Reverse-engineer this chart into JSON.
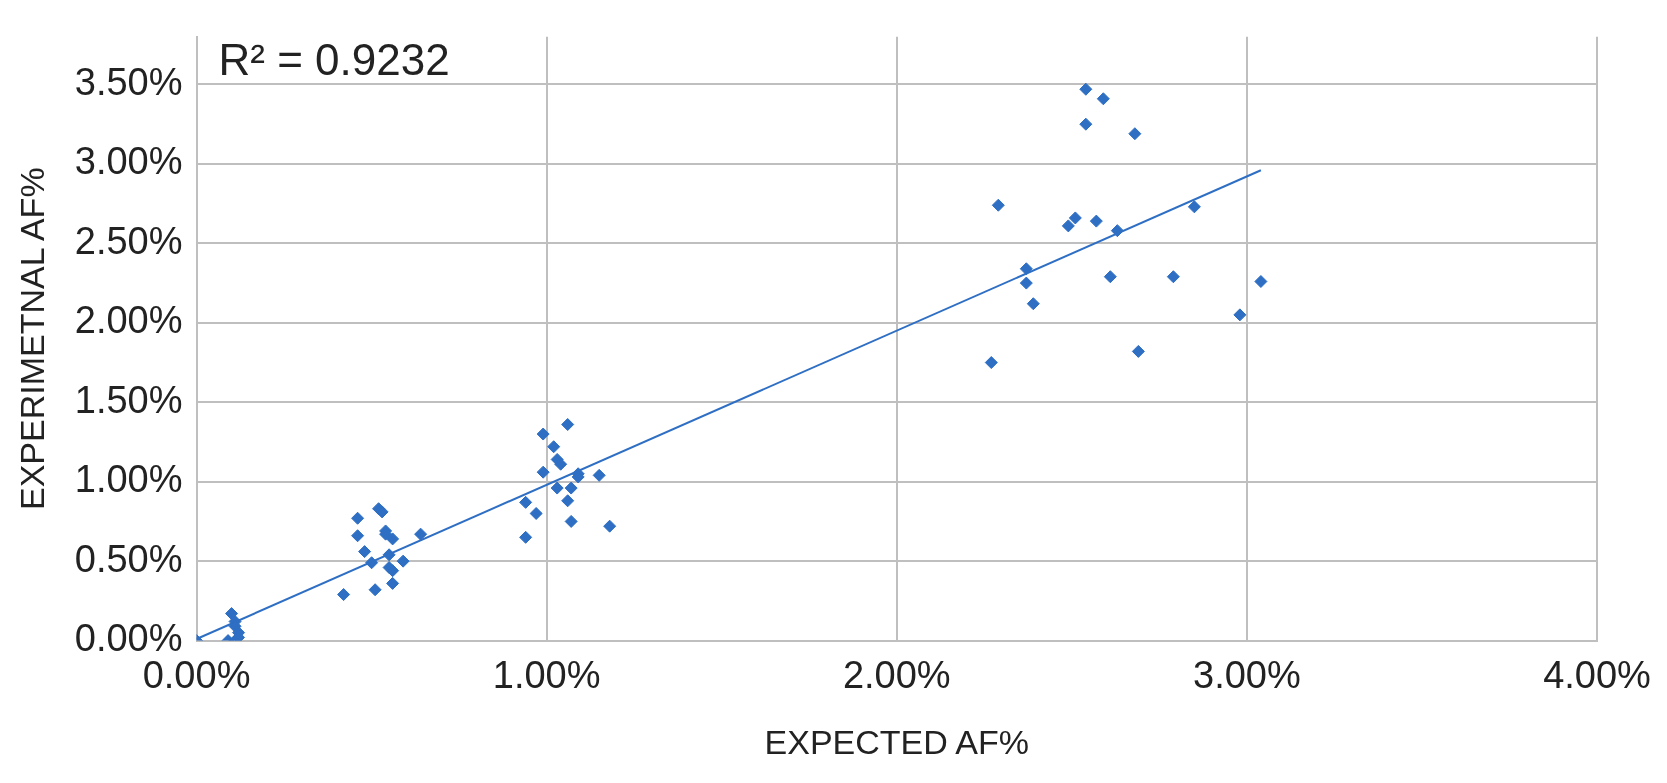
{
  "chart_data": {
    "type": "scatter",
    "xlabel": "EXPECTED AF%",
    "ylabel": "EXPERIMETNAL AF%",
    "annotations": [
      "R² = 0.9232"
    ],
    "xlim": [
      0,
      4
    ],
    "ylim": [
      0,
      3.8
    ],
    "xticks": [
      {
        "value": 0,
        "label": "0.00%"
      },
      {
        "value": 1,
        "label": "1.00%"
      },
      {
        "value": 2,
        "label": "2.00%"
      },
      {
        "value": 3,
        "label": "3.00%"
      },
      {
        "value": 4,
        "label": "4.00%"
      }
    ],
    "yticks": [
      {
        "value": 0,
        "label": "0.00%"
      },
      {
        "value": 0.5,
        "label": "0.50%"
      },
      {
        "value": 1,
        "label": "1.00%"
      },
      {
        "value": 1.5,
        "label": "1.50%"
      },
      {
        "value": 2,
        "label": "2.00%"
      },
      {
        "value": 2.5,
        "label": "2.50%"
      },
      {
        "value": 3,
        "label": "3.00%"
      },
      {
        "value": 3.5,
        "label": "3.50%"
      }
    ],
    "grid": true,
    "series": [
      {
        "marker": "diamond",
        "color": "#2e6fc4",
        "x": [
          0,
          0.1,
          0.11,
          0.11,
          0.12,
          0.09,
          0.11,
          0.12,
          0.42,
          0.46,
          0.46,
          0.48,
          0.5,
          0.51,
          0.52,
          0.53,
          0.54,
          0.54,
          0.56,
          0.55,
          0.55,
          0.56,
          0.56,
          0.59,
          0.64,
          0.94,
          0.97,
          0.94,
          0.99,
          0.99,
          1.02,
          1.03,
          1.04,
          1.06,
          1.03,
          1.07,
          1.06,
          1.07,
          1.09,
          1.09,
          1.15,
          1.18,
          2.54,
          2.59,
          2.54,
          2.68,
          2.29,
          2.51,
          2.49,
          2.57,
          2.63,
          2.85,
          2.37,
          2.37,
          2.39,
          2.61,
          2.79,
          3.04,
          2.98,
          2.27,
          2.69
        ],
        "values": [
          0,
          0.17,
          0.12,
          0.09,
          0.05,
          0,
          0,
          0.02,
          0.29,
          0.77,
          0.66,
          0.56,
          0.49,
          0.32,
          0.83,
          0.81,
          0.69,
          0.67,
          0.64,
          0.54,
          0.46,
          0.44,
          0.36,
          0.5,
          0.67,
          0.65,
          0.8,
          0.87,
          1.06,
          1.3,
          1.22,
          1.14,
          1.11,
          1.36,
          0.96,
          0.96,
          0.88,
          0.75,
          1.05,
          1.03,
          1.04,
          0.72,
          3.47,
          3.41,
          3.25,
          3.19,
          2.74,
          2.66,
          2.61,
          2.64,
          2.58,
          2.73,
          2.34,
          2.25,
          2.12,
          2.29,
          2.29,
          2.26,
          2.05,
          1.75,
          1.82
        ]
      },
      {
        "type": "line",
        "color": "#2e6fc4",
        "x": [
          0,
          3.04
        ],
        "values": [
          0.01,
          2.96
        ]
      }
    ]
  }
}
